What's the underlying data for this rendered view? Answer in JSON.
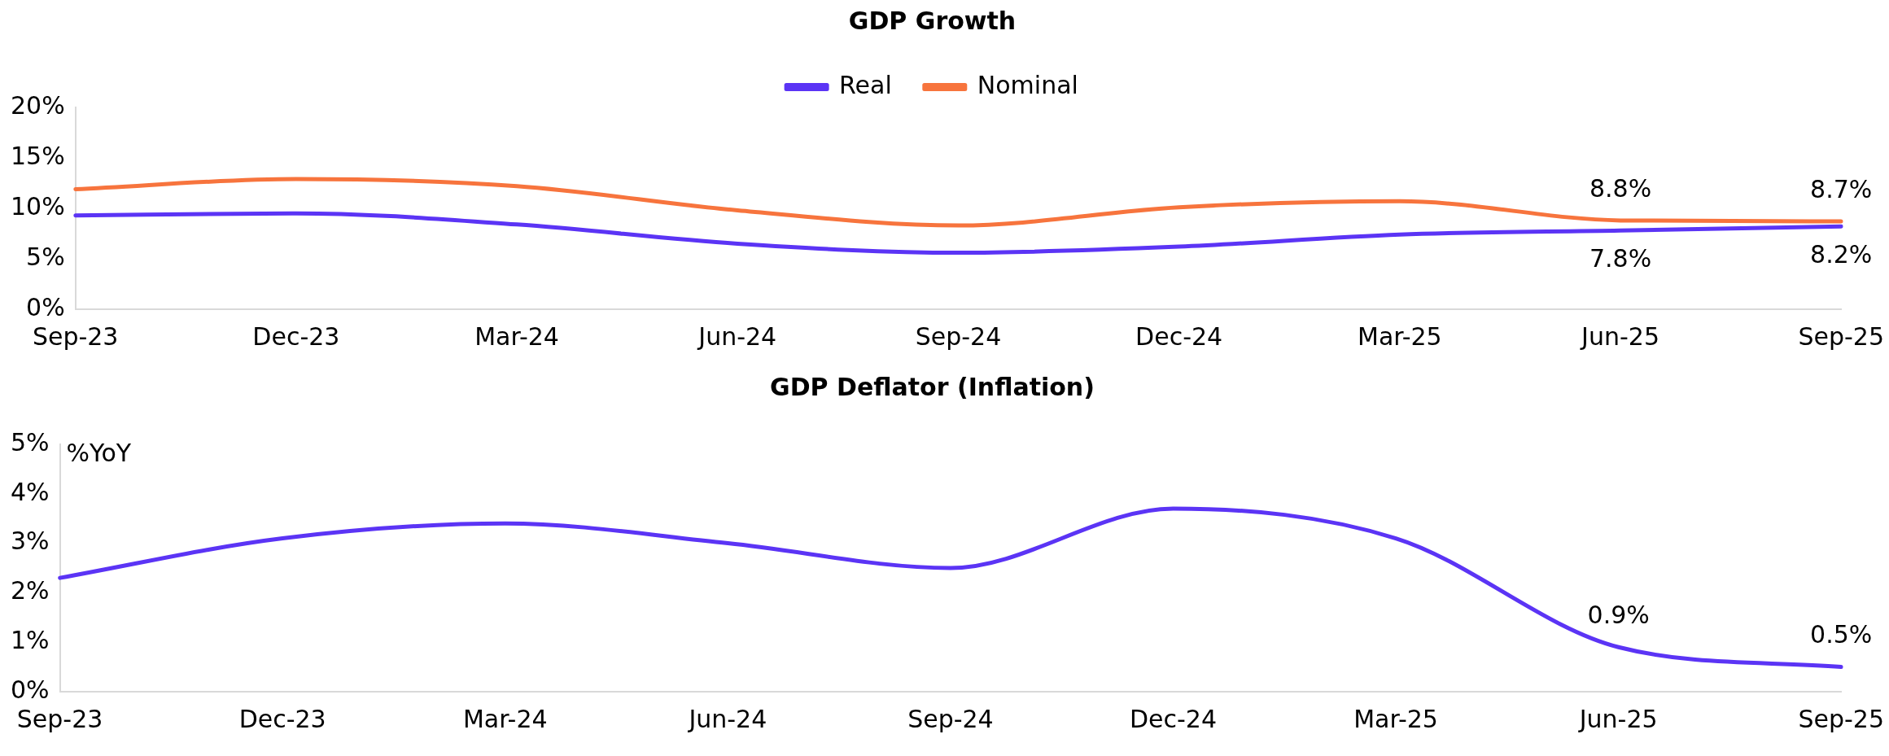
{
  "chart_data": [
    {
      "type": "line",
      "title": "GDP Growth",
      "categories": [
        "Sep-23",
        "Dec-23",
        "Mar-24",
        "Jun-24",
        "Sep-24",
        "Dec-24",
        "Mar-25",
        "Jun-25",
        "Sep-25"
      ],
      "series": [
        {
          "name": "Real",
          "color": "#5b34f5",
          "values": [
            9.3,
            9.5,
            8.4,
            6.5,
            5.6,
            6.2,
            7.4,
            7.8,
            8.2
          ],
          "value_labels": [
            null,
            null,
            null,
            null,
            null,
            null,
            null,
            "7.8%",
            "8.2%"
          ]
        },
        {
          "name": "Nominal",
          "color": "#f7743d",
          "values": [
            11.9,
            12.9,
            12.2,
            9.8,
            8.3,
            10.1,
            10.7,
            8.8,
            8.7
          ],
          "value_labels": [
            null,
            null,
            null,
            null,
            null,
            null,
            null,
            "8.8%",
            "8.7%"
          ]
        }
      ],
      "ylim": [
        0,
        20
      ],
      "yticks": [
        {
          "value": 0,
          "label": "0%"
        },
        {
          "value": 5,
          "label": "5%"
        },
        {
          "value": 10,
          "label": "10%"
        },
        {
          "value": 15,
          "label": "15%"
        },
        {
          "value": 20,
          "label": "20%"
        }
      ],
      "grid": false,
      "legend": "top",
      "marker": "none",
      "line_style": "solid"
    },
    {
      "type": "line",
      "title": "GDP Deflator (Inflation)",
      "ylabel": "%YoY",
      "categories": [
        "Sep-23",
        "Dec-23",
        "Mar-24",
        "Jun-24",
        "Sep-24",
        "Dec-24",
        "Mar-25",
        "Jun-25",
        "Sep-25"
      ],
      "series": [
        {
          "color": "#5b34f5",
          "values": [
            2.3,
            3.1,
            3.4,
            3.0,
            2.5,
            3.7,
            3.1,
            0.9,
            0.5
          ],
          "value_labels": [
            null,
            null,
            null,
            null,
            null,
            null,
            null,
            "0.9%",
            "0.5%"
          ]
        }
      ],
      "ylim": [
        0,
        5
      ],
      "yticks": [
        {
          "value": 0,
          "label": "0%"
        },
        {
          "value": 1,
          "label": "1%"
        },
        {
          "value": 2,
          "label": "2%"
        },
        {
          "value": 3,
          "label": "3%"
        },
        {
          "value": 4,
          "label": "4%"
        },
        {
          "value": 5,
          "label": "5%"
        }
      ],
      "grid": false,
      "legend": false,
      "marker": "none",
      "line_style": "solid"
    }
  ]
}
